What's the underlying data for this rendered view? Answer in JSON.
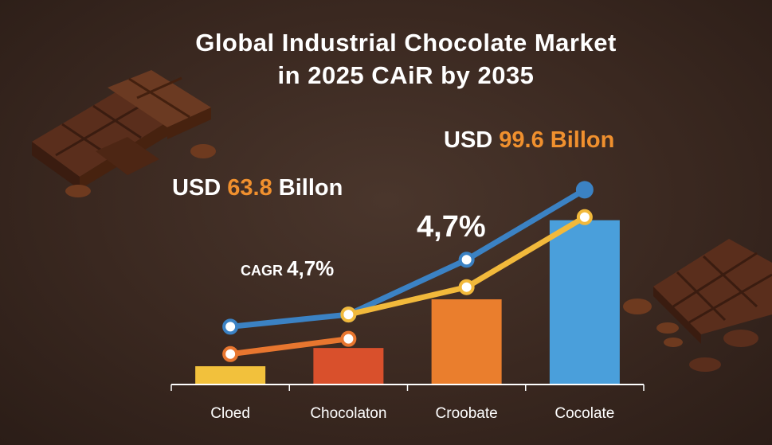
{
  "title_line1": "Global Industrial Chocolate Market",
  "title_line2": "in 2025 CAiR by 2035",
  "callouts": {
    "start_prefix": "USD ",
    "start_value": "63.8",
    "start_suffix": " Billon",
    "end_prefix": "USD ",
    "end_value": "99.6 Billon",
    "cagr_small_label": "CAGR",
    "cagr_small_value": "4,7%",
    "cagr_big": "4,7%"
  },
  "colors": {
    "accent": "#f0902e",
    "blue_line": "#3b82c4",
    "orange_line": "#e8762f",
    "yellow_line": "#f2b93b",
    "background": "#3b2a22"
  },
  "chart_data": {
    "type": "bar",
    "categories": [
      "Cloed",
      "Chocolaton",
      "Croobate",
      "Cocolate"
    ],
    "values": [
      12,
      24,
      56,
      108
    ],
    "bar_colors": [
      "#f2c13c",
      "#d9502c",
      "#ea7e2d",
      "#4a9fdb"
    ],
    "ylim": [
      0,
      135
    ],
    "lines": [
      {
        "color": "#3b82c4",
        "points": [
          [
            0,
            38
          ],
          [
            1,
            46
          ],
          [
            2,
            82
          ],
          [
            3,
            128
          ]
        ]
      },
      {
        "color": "#e8762f",
        "points": [
          [
            0,
            20
          ],
          [
            1,
            30
          ]
        ]
      },
      {
        "color": "#f2b93b",
        "points": [
          [
            1,
            46
          ],
          [
            2,
            64
          ],
          [
            3,
            110
          ]
        ]
      }
    ],
    "grid": false
  }
}
